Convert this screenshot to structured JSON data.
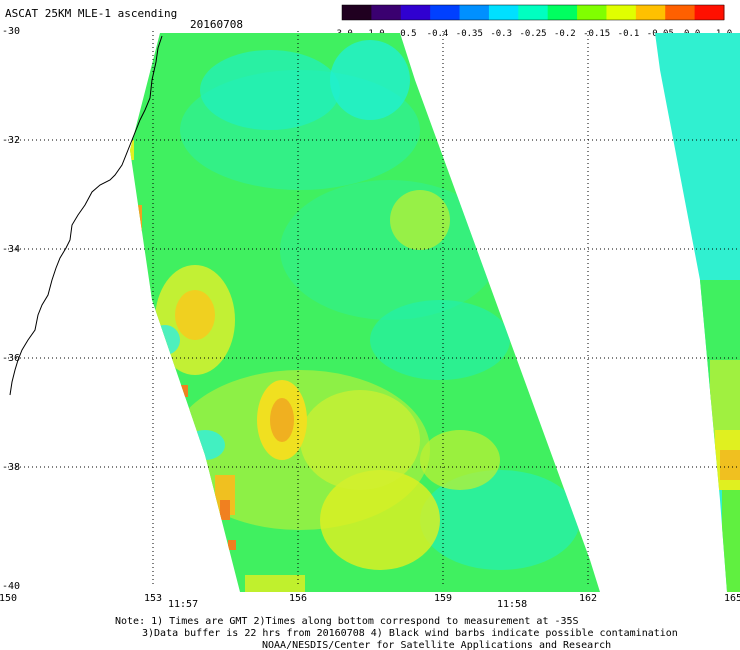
{
  "header": {
    "title": "ASCAT 25KM MLE-1 ascending",
    "date": "20160708"
  },
  "colorbar": {
    "labels": [
      "-3.0",
      "-1.0",
      "-0.5",
      "-0.4",
      "-0.35",
      "-0.3",
      "-0.25",
      "-0.2",
      "-0.15",
      "-0.1",
      "-0.05",
      "0.0",
      "1.0"
    ],
    "colors": [
      "#200020",
      "#3a0070",
      "#3000d0",
      "#0040ff",
      "#0090ff",
      "#00e0ff",
      "#00ffc0",
      "#00ff60",
      "#80ff00",
      "#e0ff00",
      "#ffc000",
      "#ff6000",
      "#ff1000"
    ]
  },
  "axes": {
    "lon_labels": [
      "150",
      "153",
      "156",
      "159",
      "162",
      "165"
    ],
    "lat_labels": [
      "-30",
      "-32",
      "-34",
      "-36",
      "-38",
      "-40"
    ]
  },
  "pass_times": [
    "11:57",
    "11:58"
  ],
  "notes": [
    "Note: 1) Times are GMT 2)Times along bottom correspond to measurement at -35S",
    "3)Data buffer is 22 hrs from 20160708 4) Black wind barbs indicate possible contamination",
    "NOAA/NESDIS/Center for Satellite Applications and Research"
  ],
  "colors": {
    "grid": "#000000",
    "time_label": "#c00000",
    "background": "#ffffff"
  }
}
